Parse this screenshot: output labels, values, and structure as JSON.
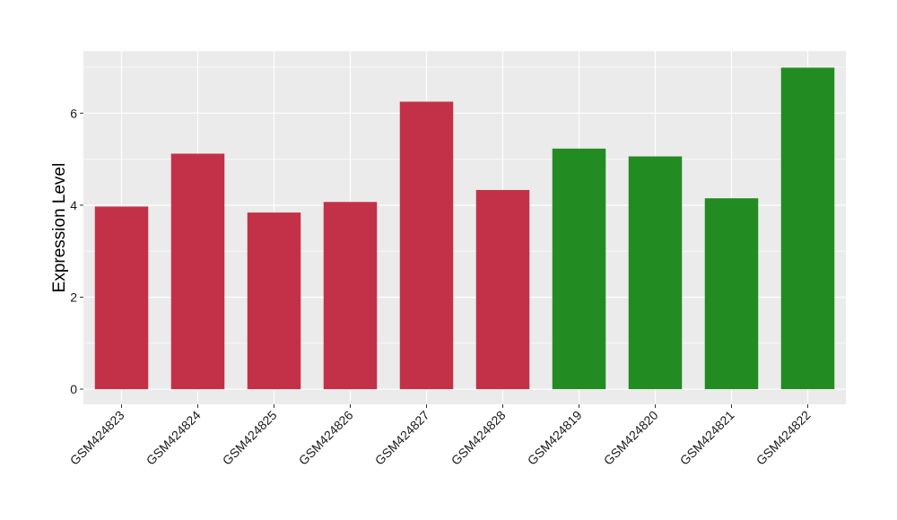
{
  "chart_data": {
    "type": "bar",
    "title": "",
    "xlabel": "",
    "ylabel": "Expression Level",
    "ylim": [
      -0.33,
      7.35
    ],
    "yticks": [
      0,
      2,
      4,
      6
    ],
    "grid": true,
    "legend": "none",
    "categories": [
      "GSM424823",
      "GSM424824",
      "GSM424825",
      "GSM424826",
      "GSM424827",
      "GSM424828",
      "GSM424819",
      "GSM424820",
      "GSM424821",
      "GSM424822"
    ],
    "values": [
      3.97,
      5.12,
      3.84,
      4.07,
      6.25,
      4.33,
      5.23,
      5.06,
      4.15,
      6.99
    ],
    "groups": [
      "red",
      "red",
      "red",
      "red",
      "red",
      "red",
      "green",
      "green",
      "green",
      "green"
    ],
    "colors": {
      "red": "#C33149",
      "green": "#228B22",
      "panel": "#EBEBEB",
      "grid": "#FFFFFF"
    }
  }
}
